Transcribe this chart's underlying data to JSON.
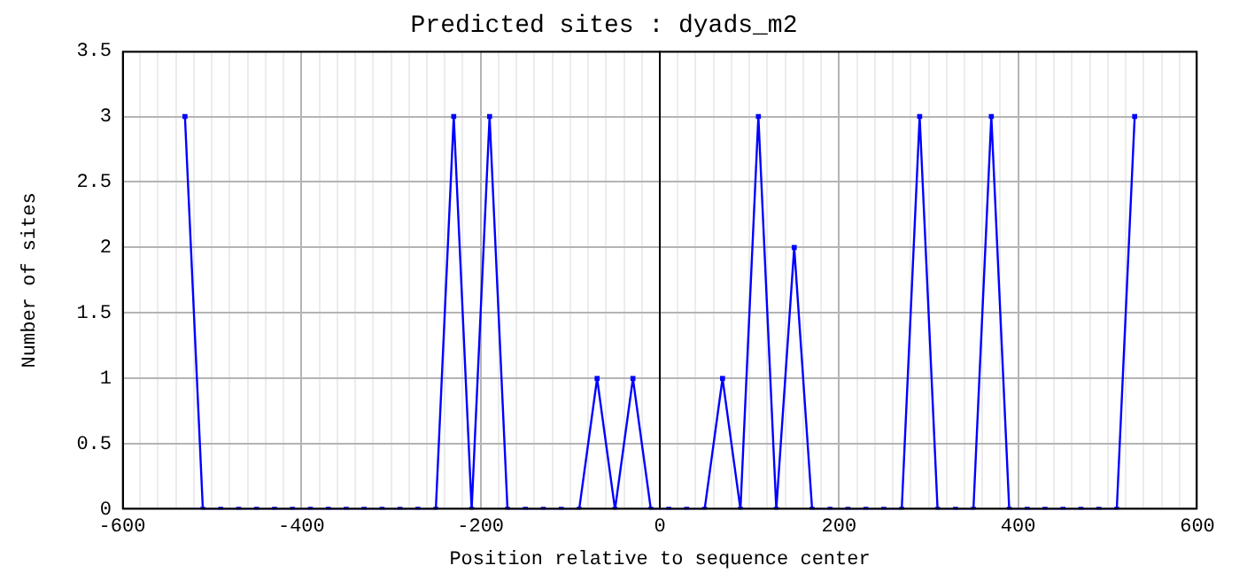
{
  "chart_data": {
    "type": "line",
    "title": "Predicted sites : dyads_m2",
    "xlabel": "Position relative to sequence center",
    "ylabel": "Number of sites",
    "x": [
      -530,
      -510,
      -490,
      -470,
      -450,
      -430,
      -410,
      -390,
      -370,
      -350,
      -330,
      -310,
      -290,
      -270,
      -250,
      -230,
      -210,
      -190,
      -170,
      -150,
      -130,
      -110,
      -90,
      -70,
      -50,
      -30,
      -10,
      10,
      30,
      50,
      70,
      90,
      110,
      130,
      150,
      170,
      190,
      210,
      230,
      250,
      270,
      290,
      310,
      330,
      350,
      370,
      390,
      410,
      430,
      450,
      470,
      490,
      510,
      530
    ],
    "series": [
      {
        "color": "#0000ff",
        "values": [
          3,
          0,
          0,
          0,
          0,
          0,
          0,
          0,
          0,
          0,
          0,
          0,
          0,
          0,
          0,
          3,
          0,
          3,
          0,
          0,
          0,
          0,
          0,
          1,
          0,
          1,
          0,
          0,
          0,
          0,
          1,
          0,
          3,
          0,
          2,
          0,
          0,
          0,
          0,
          0,
          0,
          3,
          0,
          0,
          0,
          3,
          0,
          0,
          0,
          0,
          0,
          0,
          0,
          3
        ]
      }
    ],
    "xlim": [
      -600,
      600
    ],
    "xticks": [
      -600,
      {
        "value": -580,
        "label": null
      },
      {
        "value": -560,
        "label": null
      },
      {
        "value": -540,
        "label": null
      },
      {
        "value": -520,
        "label": null
      },
      {
        "value": -500,
        "label": null
      },
      {
        "value": -480,
        "label": null
      },
      {
        "value": -460,
        "label": null
      },
      {
        "value": -440,
        "label": null
      },
      {
        "value": -420,
        "label": null
      },
      -400,
      {
        "value": -380,
        "label": null
      },
      {
        "value": -360,
        "label": null
      },
      {
        "value": -340,
        "label": null
      },
      {
        "value": -320,
        "label": null
      },
      {
        "value": -300,
        "label": null
      },
      {
        "value": -280,
        "label": null
      },
      {
        "value": -260,
        "label": null
      },
      {
        "value": -240,
        "label": null
      },
      {
        "value": -220,
        "label": null
      },
      -200,
      {
        "value": -180,
        "label": null
      },
      {
        "value": -160,
        "label": null
      },
      {
        "value": -140,
        "label": null
      },
      {
        "value": -120,
        "label": null
      },
      {
        "value": -100,
        "label": null
      },
      {
        "value": -80,
        "label": null
      },
      {
        "value": -60,
        "label": null
      },
      {
        "value": -40,
        "label": null
      },
      {
        "value": -20,
        "label": null
      },
      0,
      {
        "value": 20,
        "label": null
      },
      {
        "value": 40,
        "label": null
      },
      {
        "value": 60,
        "label": null
      },
      {
        "value": 80,
        "label": null
      },
      {
        "value": 100,
        "label": null
      },
      {
        "value": 120,
        "label": null
      },
      {
        "value": 140,
        "label": null
      },
      {
        "value": 160,
        "label": null
      },
      {
        "value": 180,
        "label": null
      },
      200,
      {
        "value": 220,
        "label": null
      },
      {
        "value": 240,
        "label": null
      },
      {
        "value": 260,
        "label": null
      },
      {
        "value": 280,
        "label": null
      },
      {
        "value": 300,
        "label": null
      },
      {
        "value": 320,
        "label": null
      },
      {
        "value": 340,
        "label": null
      },
      {
        "value": 360,
        "label": null
      },
      {
        "value": 380,
        "label": null
      },
      400,
      {
        "value": 420,
        "label": null
      },
      {
        "value": 440,
        "label": null
      },
      {
        "value": 460,
        "label": null
      },
      {
        "value": 480,
        "label": null
      },
      {
        "value": 500,
        "label": null
      },
      {
        "value": 520,
        "label": null
      },
      {
        "value": 540,
        "label": null
      },
      {
        "value": 560,
        "label": null
      },
      {
        "value": 580,
        "label": null
      },
      600
    ],
    "ylim": [
      0,
      3.5
    ],
    "yticks": [
      0,
      0.5,
      1,
      1.5,
      2,
      2.5,
      3,
      3.5
    ],
    "ref_lines": [
      {
        "axis": "x",
        "value": 0,
        "color": "#000000"
      }
    ],
    "grid": true,
    "legend": false,
    "marker": "square",
    "line_style": "solid"
  }
}
